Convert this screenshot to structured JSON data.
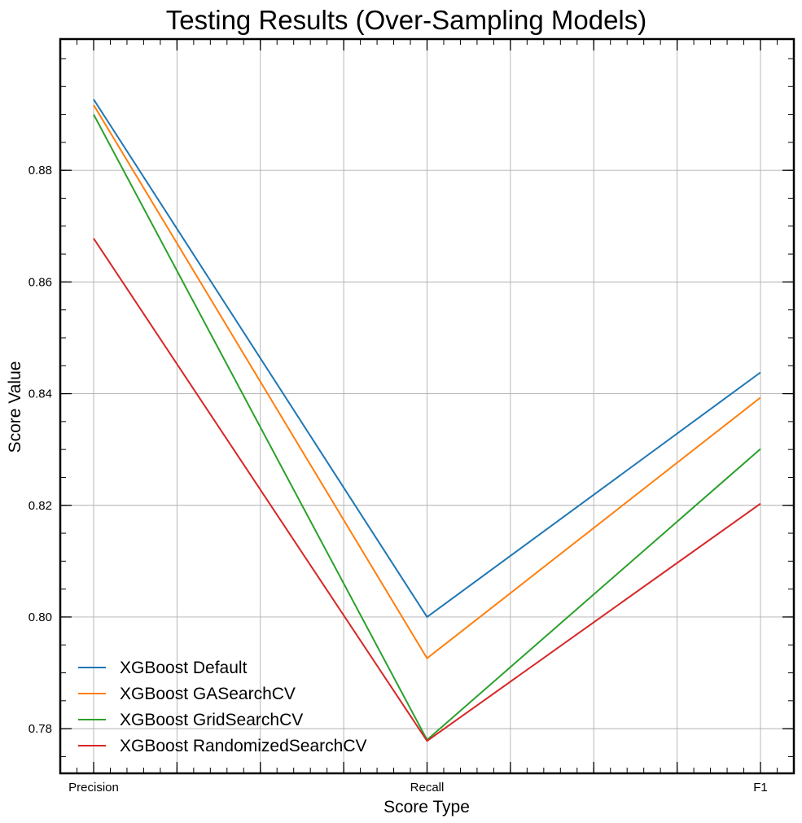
{
  "chart_data": {
    "type": "line",
    "title": "Testing Results (Over-Sampling Models)",
    "xlabel": "Score Type",
    "ylabel": "Score Value",
    "categories": [
      "Precision",
      "Recall",
      "F1"
    ],
    "ylim": [
      0.772,
      0.9035
    ],
    "yticks": [
      0.78,
      0.8,
      0.82,
      0.84,
      0.86,
      0.88
    ],
    "ytick_labels": [
      "0.78",
      "0.80",
      "0.82",
      "0.84",
      "0.86",
      "0.88"
    ],
    "grid": true,
    "legend_position": "lower-left",
    "series": [
      {
        "name": "XGBoost Default",
        "color": "#1f77b4",
        "values": [
          0.8927,
          0.8,
          0.8438
        ]
      },
      {
        "name": "XGBoost GASearchCV",
        "color": "#ff7f0e",
        "values": [
          0.8917,
          0.7926,
          0.8393
        ]
      },
      {
        "name": "XGBoost GridSearchCV",
        "color": "#2ca02c",
        "values": [
          0.89,
          0.778,
          0.8301
        ]
      },
      {
        "name": "XGBoost RandomizedSearchCV",
        "color": "#d62728",
        "values": [
          0.8678,
          0.7778,
          0.8203
        ]
      }
    ]
  }
}
